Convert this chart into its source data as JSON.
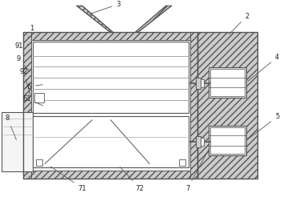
{
  "line_color": "#555555",
  "hatch_color": "#888888",
  "wall_color": "#cccccc",
  "bg_color": "#ffffff",
  "fig_w": 3.64,
  "fig_h": 2.46,
  "dpi": 100
}
